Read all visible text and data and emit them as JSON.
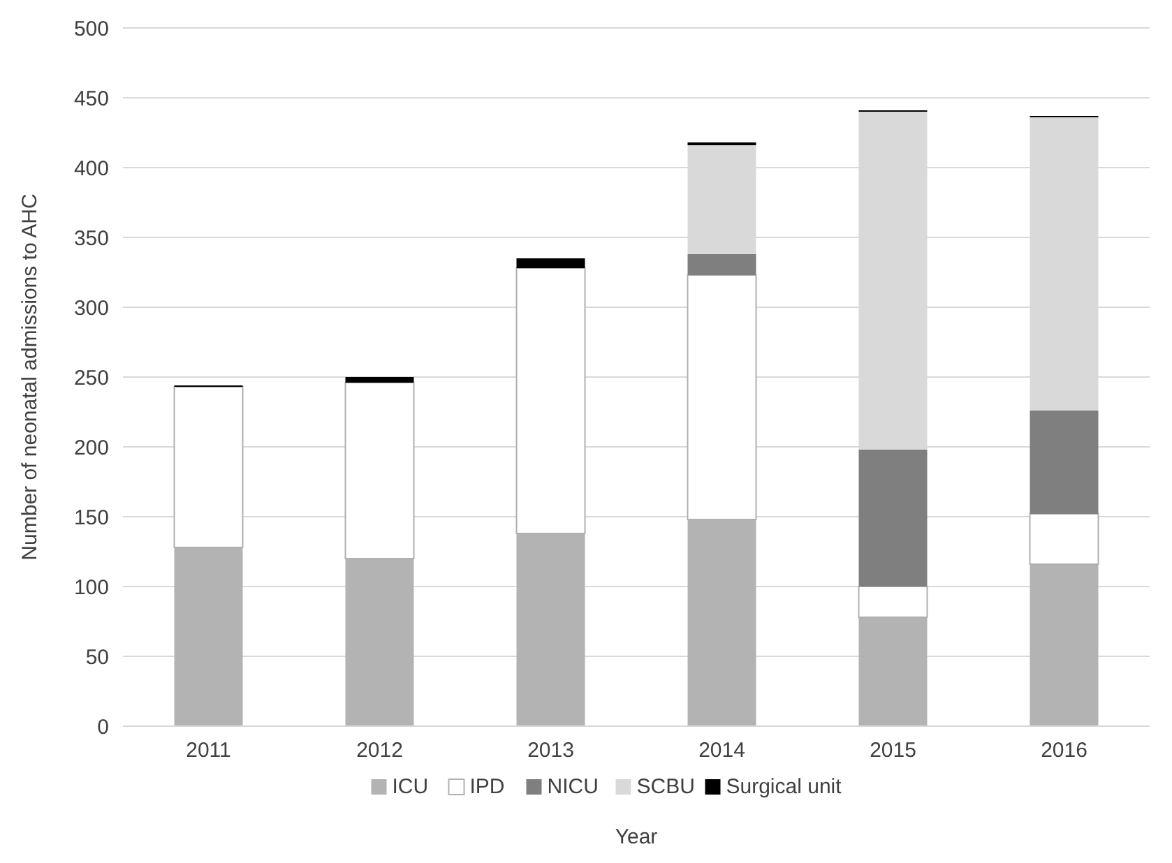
{
  "chart_data": {
    "type": "bar",
    "stacked": true,
    "xlabel": "Year",
    "ylabel": "Number of neonatal admissions to AHC",
    "categories": [
      "2011",
      "2012",
      "2013",
      "2014",
      "2015",
      "2016"
    ],
    "series": [
      {
        "name": "ICU",
        "color": "#b3b3b3",
        "values": [
          128,
          120,
          138,
          148,
          78,
          116
        ]
      },
      {
        "name": "IPD",
        "color": "#ffffff",
        "values": [
          115,
          126,
          190,
          175,
          22,
          36
        ]
      },
      {
        "name": "NICU",
        "color": "#7f7f7f",
        "values": [
          0,
          0,
          0,
          15,
          98,
          74
        ]
      },
      {
        "name": "SCBU",
        "color": "#d9d9d9",
        "values": [
          0,
          0,
          0,
          78,
          242,
          210
        ]
      },
      {
        "name": "Surgical unit",
        "color": "#000000",
        "values": [
          1,
          4,
          7,
          2,
          1,
          1
        ]
      }
    ],
    "ylim": [
      0,
      500
    ],
    "yticks": [
      0,
      50,
      100,
      150,
      200,
      250,
      300,
      350,
      400,
      450,
      500
    ],
    "grid": "y",
    "legend": "bottom"
  }
}
